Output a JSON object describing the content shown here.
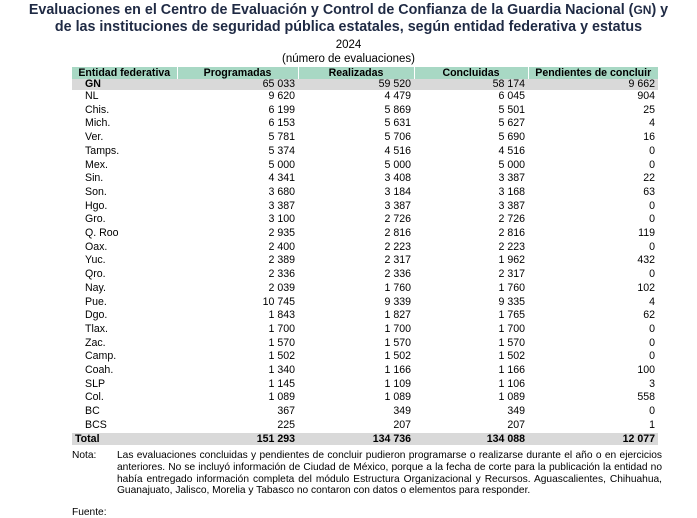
{
  "title_line1": "Evaluaciones en el Centro de Evaluación y Control de Confianza de la Guardia Nacional (",
  "title_gn": "GN",
  "title_line1_end": ") y",
  "title_line2": "de las instituciones de seguridad pública estatales, según entidad federativa y estatus",
  "year": "2024",
  "unit": "(número de evaluaciones)",
  "columns": [
    "Entidad federativa",
    "Programadas",
    "Realizadas",
    "Concluidas",
    "Pendientes de concluir"
  ],
  "gn_row": [
    "GN",
    "65 033",
    "59 520",
    "58 174",
    "9 662"
  ],
  "rows": [
    [
      "NL",
      "9 620",
      "4 479",
      "6 045",
      "904"
    ],
    [
      "Chis.",
      "6 199",
      "5 869",
      "5 501",
      "25"
    ],
    [
      "Mich.",
      "6 153",
      "5 631",
      "5 627",
      "4"
    ],
    [
      "Ver.",
      "5 781",
      "5 706",
      "5 690",
      "16"
    ],
    [
      "Tamps.",
      "5 374",
      "4 516",
      "4 516",
      "0"
    ],
    [
      "Mex.",
      "5 000",
      "5 000",
      "5 000",
      "0"
    ],
    [
      "Sin.",
      "4 341",
      "3 408",
      "3 387",
      "22"
    ],
    [
      "Son.",
      "3 680",
      "3 184",
      "3 168",
      "63"
    ],
    [
      "Hgo.",
      "3 387",
      "3 387",
      "3 387",
      "0"
    ],
    [
      "Gro.",
      "3 100",
      "2 726",
      "2 726",
      "0"
    ],
    [
      "Q. Roo",
      "2 935",
      "2 816",
      "2 816",
      "119"
    ],
    [
      "Oax.",
      "2 400",
      "2 223",
      "2 223",
      "0"
    ],
    [
      "Yuc.",
      "2 389",
      "2 317",
      "1 962",
      "432"
    ],
    [
      "Qro.",
      "2 336",
      "2 336",
      "2 317",
      "0"
    ],
    [
      "Nay.",
      "2 039",
      "1 760",
      "1 760",
      "102"
    ],
    [
      "Pue.",
      "10 745",
      "9 339",
      "9 335",
      "4"
    ],
    [
      "Dgo.",
      "1 843",
      "1 827",
      "1 765",
      "62"
    ],
    [
      "Tlax.",
      "1 700",
      "1 700",
      "1 700",
      "0"
    ],
    [
      "Zac.",
      "1 570",
      "1 570",
      "1 570",
      "0"
    ],
    [
      "Camp.",
      "1 502",
      "1 502",
      "1 502",
      "0"
    ],
    [
      "Coah.",
      "1 340",
      "1 166",
      "1 166",
      "100"
    ],
    [
      "SLP",
      "1 145",
      "1 109",
      "1 106",
      "3"
    ],
    [
      "Col.",
      "1 089",
      "1 089",
      "1 089",
      "558"
    ],
    [
      "BC",
      "367",
      "349",
      "349",
      "0"
    ],
    [
      "BCS",
      "225",
      "207",
      "207",
      "1"
    ]
  ],
  "total_row": [
    "Total",
    "151 293",
    "134 736",
    "134 088",
    "12 077"
  ],
  "note_label": "Nota:",
  "note_text": "Las evaluaciones concluidas y pendientes de concluir pudieron programarse o realizarse durante el año o en ejercicios anteriores. No se incluyó información de Ciudad de México, porque a la fecha de corte para la publicación la entidad no había entregado información completa del módulo Estructura Organizacional y Recursos. Aguascalientes, Chihuahua, Guanajuato, Jalisco, Morelia y Tabasco no contaron con datos o elementos para responder.",
  "source_text": "Fuente:"
}
